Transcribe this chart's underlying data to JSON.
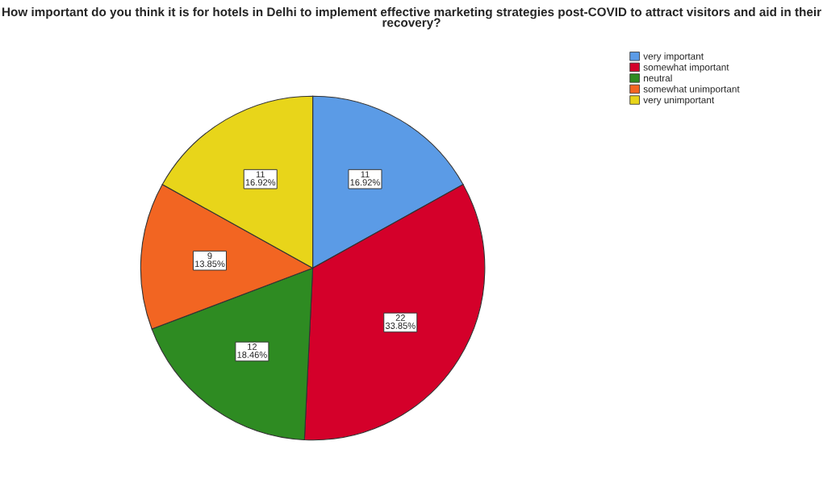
{
  "chart_data": {
    "type": "pie",
    "title": "How important do you think it is for hotels in Delhi to implement effective marketing strategies post-COVID to attract visitors and aid in their recovery?",
    "categories": [
      "very important",
      "somewhat important",
      "neutral",
      "somewhat unimportant",
      "very unimportant"
    ],
    "values": [
      11,
      22,
      12,
      9,
      11
    ],
    "colors": [
      "#5b9be6",
      "#d4002a",
      "#2e8b22",
      "#f26522",
      "#e8d51a"
    ],
    "value_labels": [
      "11\n16.92%",
      "22\n33.85%",
      "12\n18.46%",
      "9\n13.85%",
      "11\n16.92%"
    ],
    "legend": "top right"
  }
}
